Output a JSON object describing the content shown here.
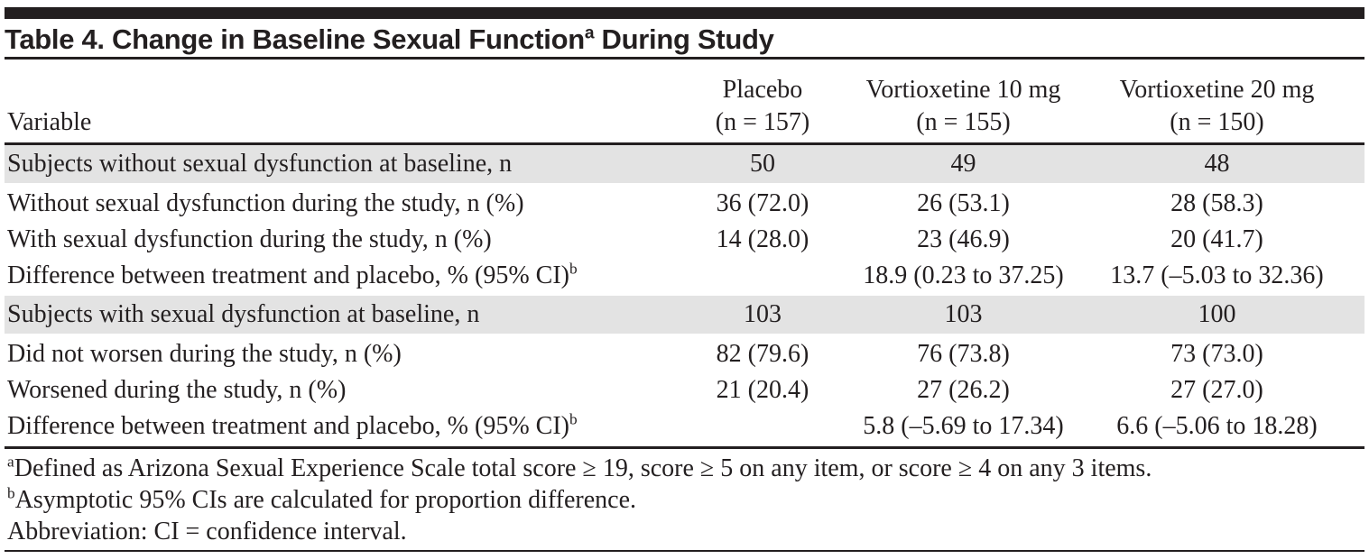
{
  "title": {
    "main": "Table 4. Change in Baseline Sexual Function",
    "superscript": "a",
    "rest": " During Study"
  },
  "columns": [
    {
      "line1": "",
      "line2": "Variable"
    },
    {
      "line1": "Placebo",
      "line2": "(n = 157)"
    },
    {
      "line1": "Vortioxetine 10 mg",
      "line2": "(n = 155)"
    },
    {
      "line1": "Vortioxetine 20 mg",
      "line2": "(n = 150)"
    }
  ],
  "table": {
    "sections": [
      {
        "header": {
          "label": "Subjects without sexual dysfunction at baseline, n",
          "values": [
            "50",
            "49",
            "48"
          ]
        },
        "rows": [
          {
            "label": "Without sexual dysfunction during the study, n (%)",
            "sup": "",
            "values": [
              "36 (72.0)",
              "26 (53.1)",
              "28 (58.3)"
            ]
          },
          {
            "label": "With sexual dysfunction during the study, n (%)",
            "sup": "",
            "values": [
              "14 (28.0)",
              "23 (46.9)",
              "20 (41.7)"
            ]
          },
          {
            "label": "Difference between treatment and placebo, % (95% CI)",
            "sup": "b",
            "values": [
              "",
              "18.9 (0.23 to 37.25)",
              "13.7 (–5.03 to 32.36)"
            ]
          }
        ]
      },
      {
        "header": {
          "label": "Subjects with sexual dysfunction at baseline, n",
          "values": [
            "103",
            "103",
            "100"
          ]
        },
        "rows": [
          {
            "label": "Did not worsen during the study, n (%)",
            "sup": "",
            "values": [
              "82 (79.6)",
              "76 (73.8)",
              "73 (73.0)"
            ]
          },
          {
            "label": "Worsened during the study, n (%)",
            "sup": "",
            "values": [
              "21 (20.4)",
              "27 (26.2)",
              "27 (27.0)"
            ]
          },
          {
            "label": "Difference between treatment and placebo, % (95% CI)",
            "sup": "b",
            "values": [
              "",
              "5.8 (–5.69 to 17.34)",
              "6.6 (–5.06 to 18.28)"
            ]
          }
        ]
      }
    ]
  },
  "footnotes": [
    {
      "sup": "a",
      "text": "Defined as Arizona Sexual Experience Scale total score ≥ 19, score ≥ 5 on any item, or score ≥ 4 on any 3 items."
    },
    {
      "sup": "b",
      "text": "Asymptotic 95% CIs are calculated for proportion difference."
    },
    {
      "sup": "",
      "text": "Abbreviation: CI = confidence interval."
    }
  ],
  "colors": {
    "text": "#231f20",
    "row_shade": "#e3e3e3",
    "rule": "#231f20"
  }
}
